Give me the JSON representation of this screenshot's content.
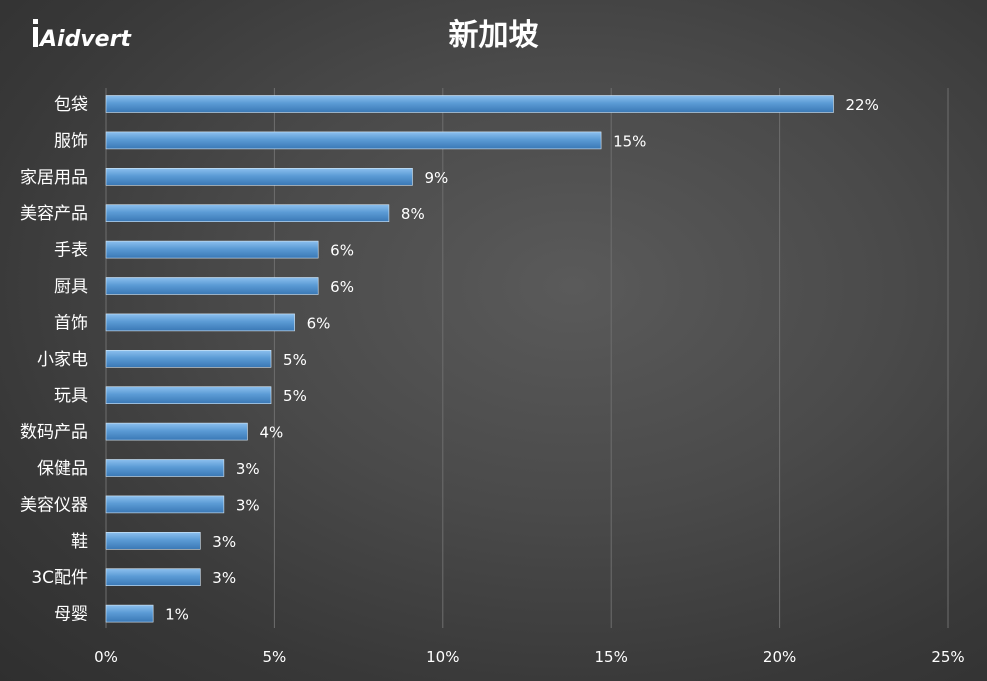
{
  "logo": {
    "text": "iAidvert"
  },
  "chart_data": {
    "type": "bar",
    "orientation": "horizontal",
    "title": "新加坡",
    "categories": [
      "包袋",
      "服饰",
      "家居用品",
      "美容产品",
      "手表",
      "厨具",
      "首饰",
      "小家电",
      "玩具",
      "数码产品",
      "保健品",
      "美容仪器",
      "鞋",
      "3C配件",
      "母婴"
    ],
    "values": [
      21.6,
      14.7,
      9.1,
      8.4,
      6.3,
      6.3,
      5.6,
      4.9,
      4.9,
      4.2,
      3.5,
      3.5,
      2.8,
      2.8,
      1.4
    ],
    "value_labels": [
      "22%",
      "15%",
      "9%",
      "8%",
      "6%",
      "6%",
      "6%",
      "5%",
      "5%",
      "4%",
      "3%",
      "3%",
      "3%",
      "3%",
      "1%"
    ],
    "xlim": [
      0,
      25
    ],
    "x_ticks": [
      0,
      5,
      10,
      15,
      20,
      25
    ],
    "x_tick_labels": [
      "0%",
      "5%",
      "10%",
      "15%",
      "20%",
      "25%"
    ],
    "xlabel": "",
    "ylabel": "",
    "grid": "vertical",
    "legend": "none",
    "colors": {
      "bar": "#5b9bd5",
      "bar_top": "#7cb4e6",
      "bar_bottom": "#3f7fbd",
      "grid": "#6e6e6e",
      "text": "#ffffff"
    }
  }
}
